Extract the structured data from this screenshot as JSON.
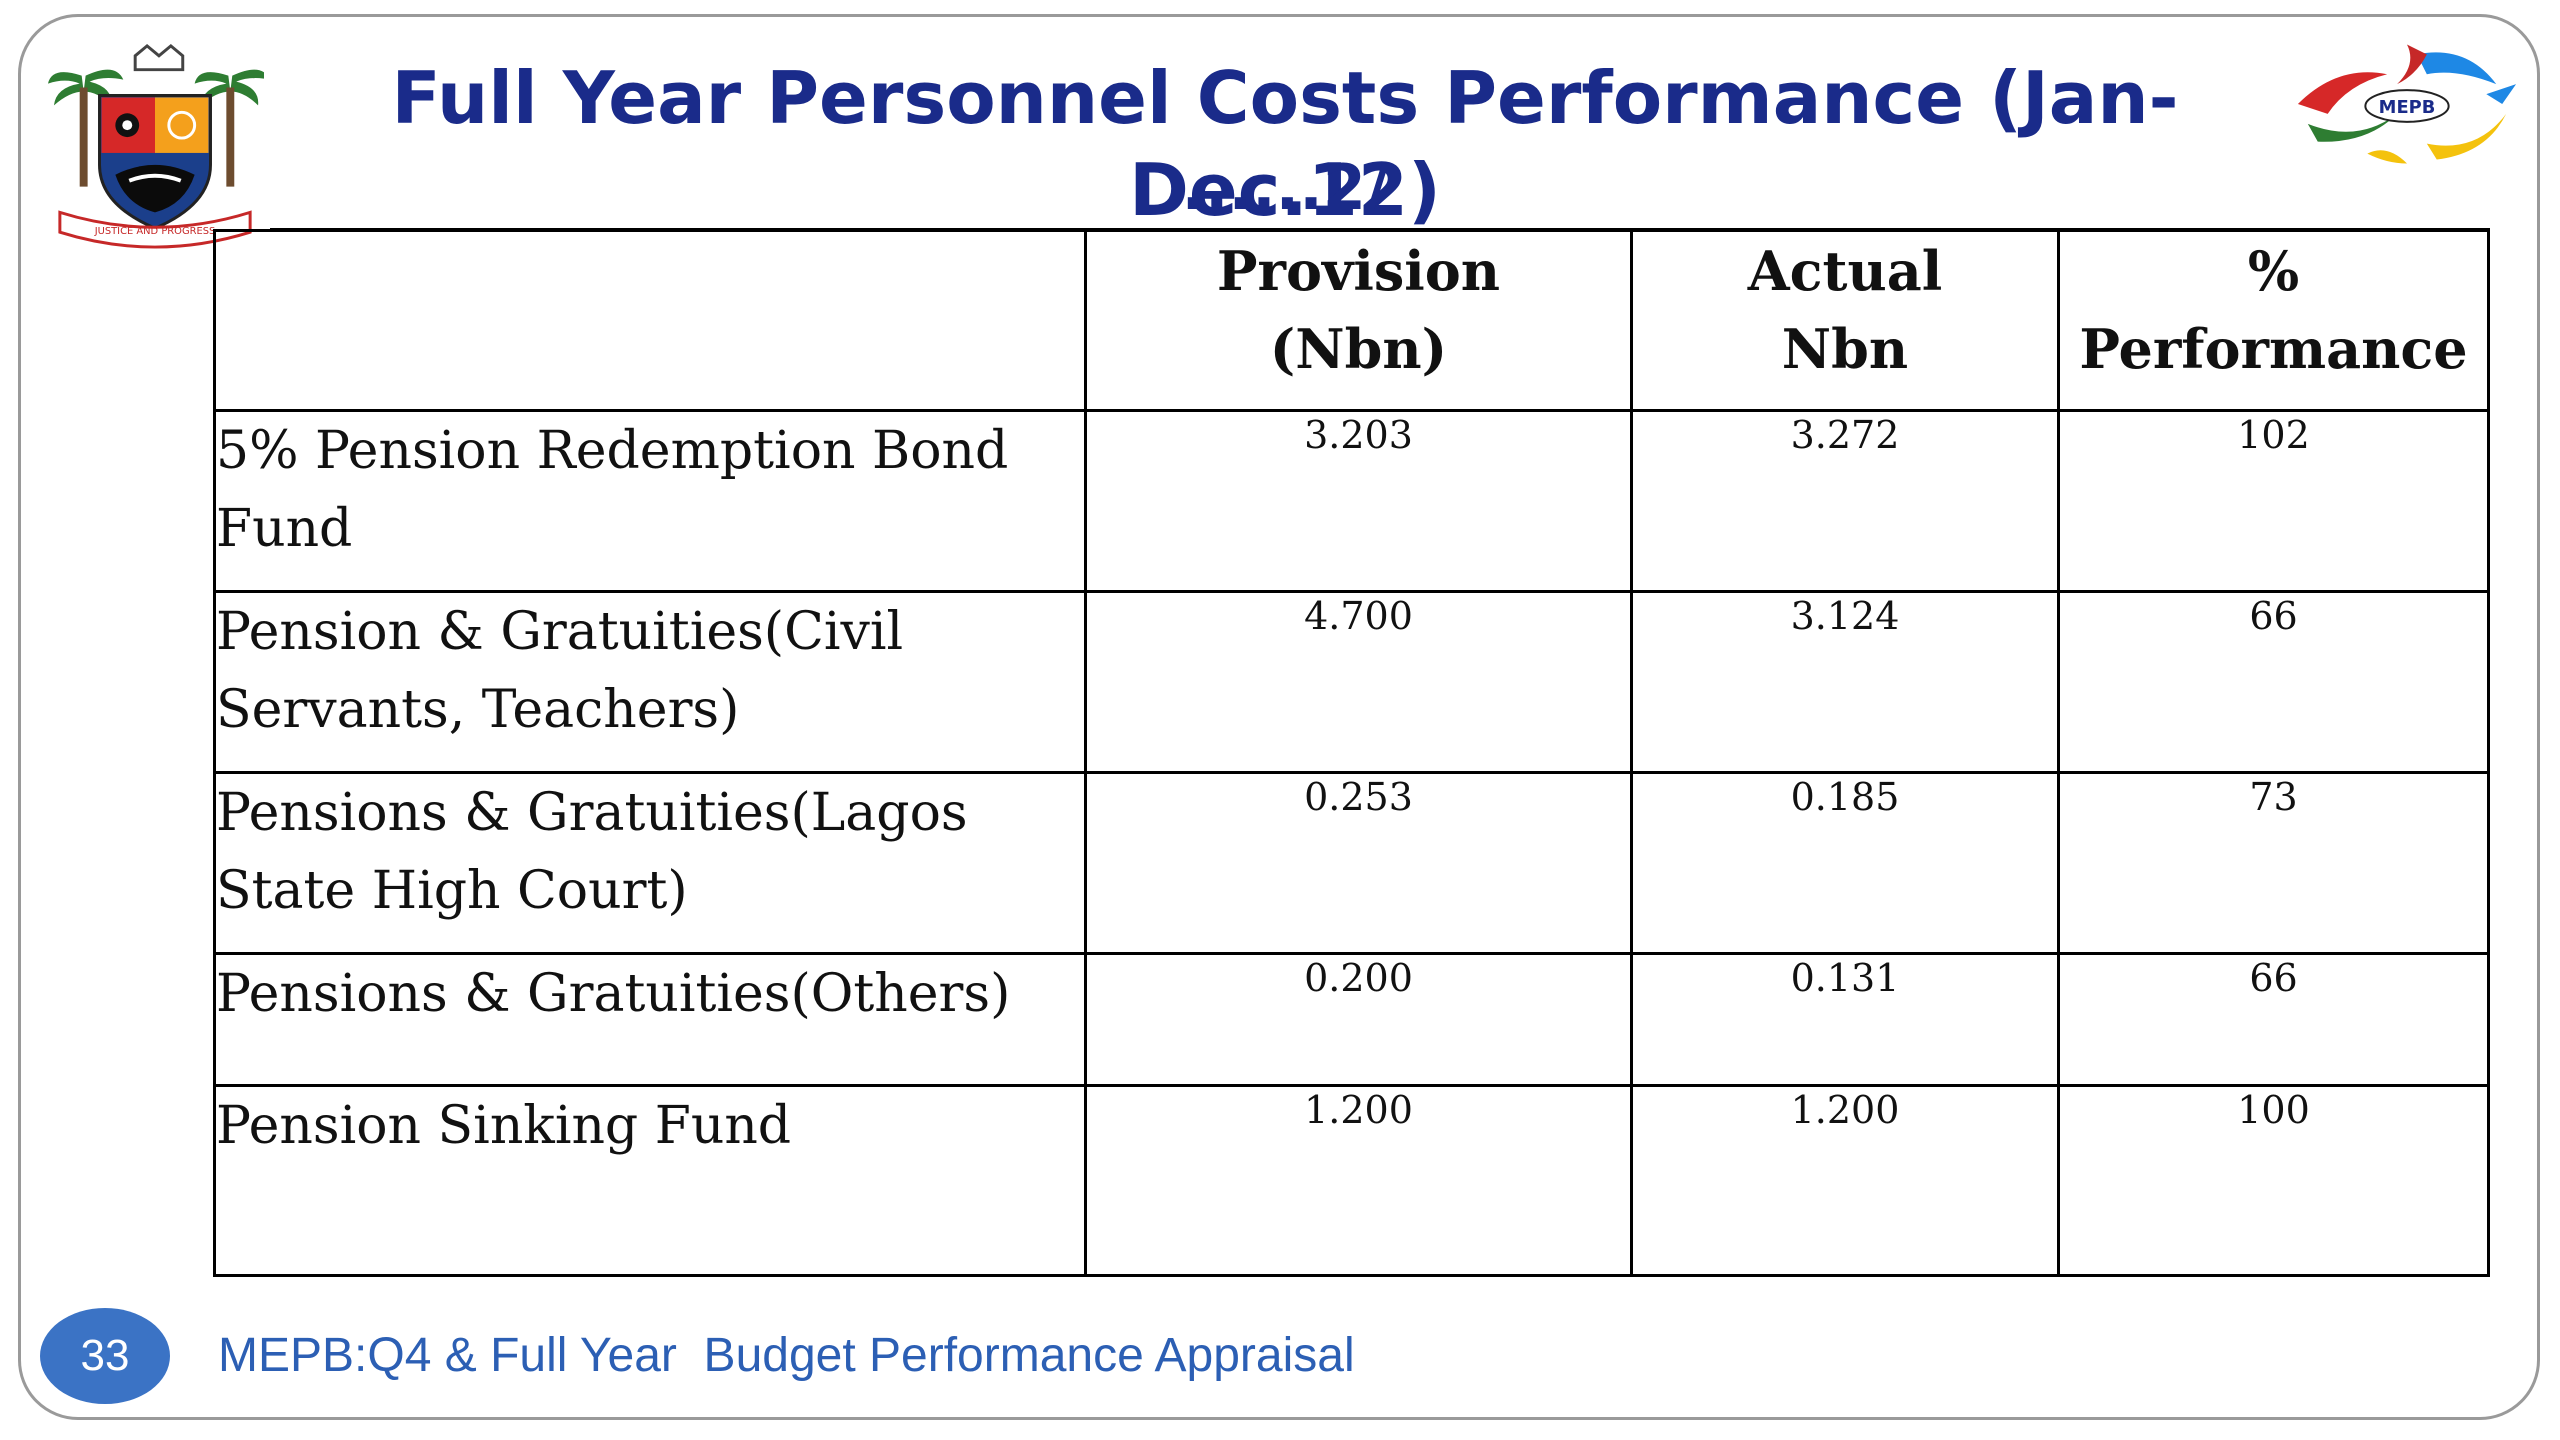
{
  "slide": {
    "title": "Full Year Personnel Costs Performance (Jan-Dec.12)",
    "subtitle": "......2/",
    "logos": {
      "left": "Lagos State Crest",
      "left_motto": "JUSTICE AND PROGRESS",
      "right": "MEPB"
    }
  },
  "table": {
    "headers": [
      {
        "line1": "",
        "line2": ""
      },
      {
        "line1": "Provision",
        "line2": "(Nbn)"
      },
      {
        "line1": "Actual",
        "line2": "Nbn"
      },
      {
        "line1": "%",
        "line2": "Performance"
      }
    ],
    "rows": [
      {
        "label": "5% Pension Redemption Bond Fund",
        "provision": "3.203",
        "actual": "3.272",
        "performance": "102"
      },
      {
        "label": "Pension & Gratuities(Civil Servants, Teachers)",
        "provision": "4.700",
        "actual": "3.124",
        "performance": "66"
      },
      {
        "label": "Pensions & Gratuities(Lagos State High Court)",
        "provision": "0.253",
        "actual": "0.185",
        "performance": "73"
      },
      {
        "label": "Pensions & Gratuities(Others)",
        "provision": "0.200",
        "actual": "0.131",
        "performance": "66"
      },
      {
        "label": "Pension Sinking  Fund",
        "provision": "1.200",
        "actual": "1.200",
        "performance": "100"
      }
    ]
  },
  "footer": {
    "page_number": "33",
    "text": "MEPB:Q4 & Full Year  Budget Performance Appraisal"
  },
  "colors": {
    "title": "#1a2b8a",
    "footer_text": "#2c5fb4",
    "badge": "#3b73c5"
  }
}
